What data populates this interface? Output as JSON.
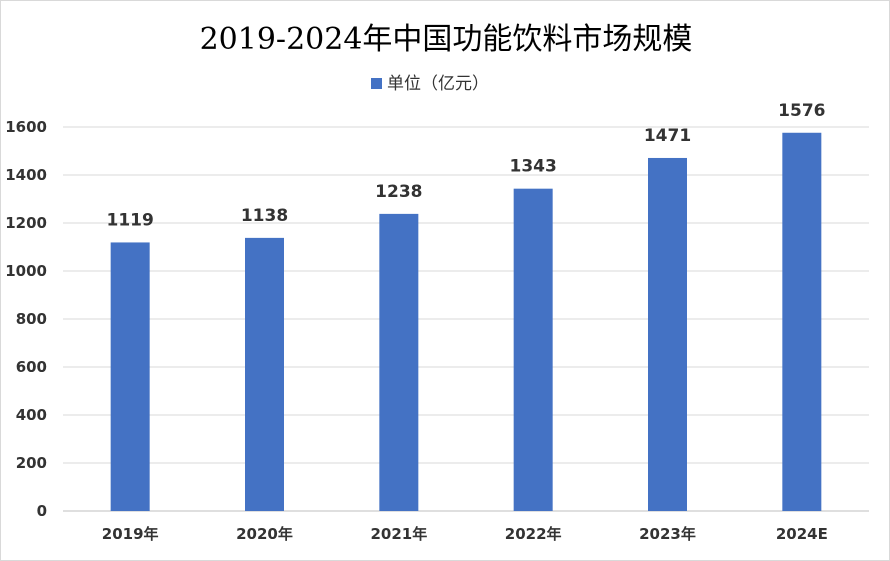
{
  "chart_data": {
    "type": "bar",
    "title": "2019-2024年中国功能饮料市场规模",
    "legend": {
      "label": "单位（亿元）",
      "placement": "top-center"
    },
    "categories": [
      "2019年",
      "2020年",
      "2021年",
      "2022年",
      "2023年",
      "2024E"
    ],
    "series": [
      {
        "name": "单位（亿元）",
        "values": [
          1119,
          1138,
          1238,
          1343,
          1471,
          1576
        ]
      }
    ],
    "data_labels": [
      "1119",
      "1138",
      "1238",
      "1343",
      "1471",
      "1576"
    ],
    "ylim": [
      0,
      1600
    ],
    "yticks": [
      0,
      200,
      400,
      600,
      800,
      1000,
      1200,
      1400,
      1600
    ],
    "ytick_labels": [
      "0",
      "200",
      "400",
      "600",
      "800",
      "1000",
      "1200",
      "1400",
      "1600"
    ],
    "grid": true,
    "colors": {
      "bar": "#4472C4",
      "grid": "#d9d9d9",
      "axis": "#bfbfbf"
    }
  }
}
